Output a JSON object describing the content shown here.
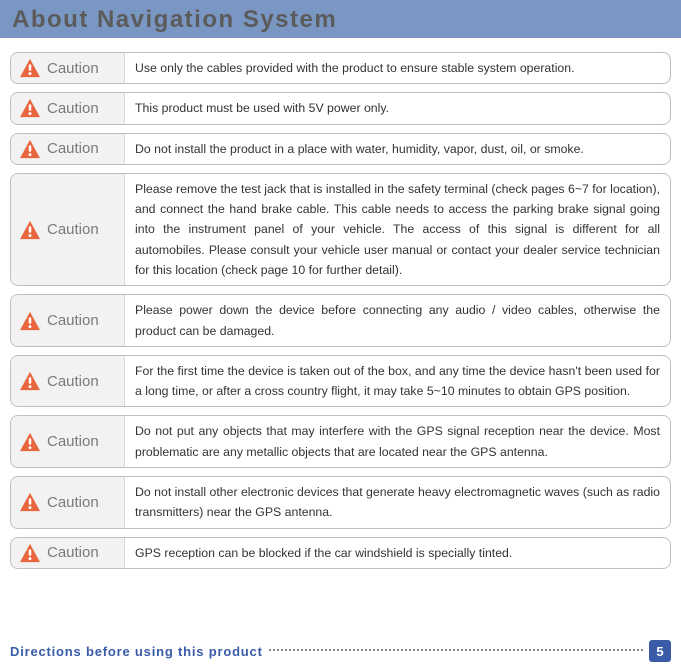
{
  "header": {
    "title": "About Navigation System",
    "bg_color": "#7a97c4",
    "text_color": "#5b5b5b"
  },
  "caution_label": "Caution",
  "icon_color": "#e8663d",
  "cautions": [
    {
      "text": "Use only the cables provided with the product to ensure stable system operation."
    },
    {
      "text": "This product must be used with 5V power only."
    },
    {
      "text": "Do not install the product in a place with water, humidity, vapor, dust, oil, or smoke."
    },
    {
      "text": "Please remove the test jack that is installed in the safety terminal (check pages 6~7 for location), and connect the hand brake cable.  This cable needs to access the parking brake signal going into the instrument panel of your vehicle.  The access of this signal is different for all automobiles. Please consult your vehicle user manual or contact your dealer service technician for this location (check page 10 for further detail)."
    },
    {
      "text": "Please power down the device before connecting any audio / video cables, otherwise the product can be damaged."
    },
    {
      "text": "For the first time the device is taken out of the box, and any time the device hasn't been used for a long time, or after a cross country flight, it may take 5~10 minutes to obtain GPS position."
    },
    {
      "text": "Do not put any objects that may interfere with the GPS signal reception near the device. Most problematic are any metallic objects that are located near the GPS antenna."
    },
    {
      "text": "Do not install other electronic devices that generate heavy electromagnetic waves (such as  radio transmitters)  near the GPS antenna."
    },
    {
      "text": "GPS reception can be blocked if the car windshield is specially tinted."
    }
  ],
  "footer": {
    "text": "Directions before using this product",
    "page_number": "5",
    "text_color": "#3a5ca8",
    "badge_bg": "#3a5ca8"
  }
}
